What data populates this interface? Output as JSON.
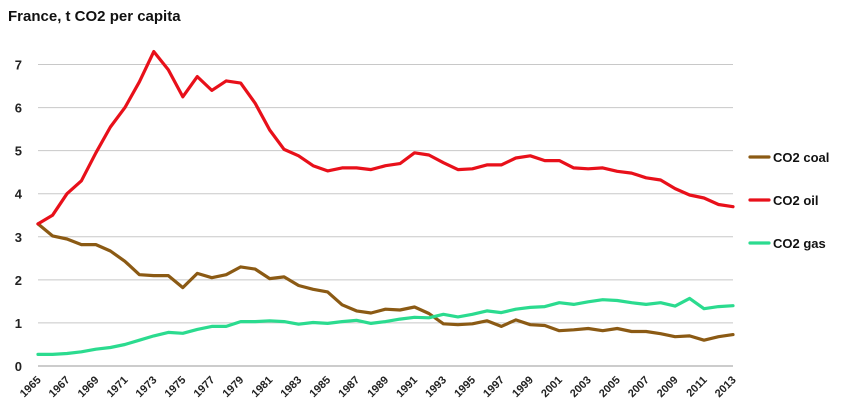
{
  "chart_data": {
    "type": "line",
    "title": "France, t CO2 per capita",
    "xlabel": "",
    "ylabel": "",
    "ylim": [
      0,
      7.5
    ],
    "yticks": [
      0,
      1,
      2,
      3,
      4,
      5,
      6,
      7
    ],
    "x": [
      1965,
      1966,
      1967,
      1968,
      1969,
      1970,
      1971,
      1972,
      1973,
      1974,
      1975,
      1976,
      1977,
      1978,
      1979,
      1980,
      1981,
      1982,
      1983,
      1984,
      1985,
      1986,
      1987,
      1988,
      1989,
      1990,
      1991,
      1992,
      1993,
      1994,
      1995,
      1996,
      1997,
      1998,
      1999,
      2000,
      2001,
      2002,
      2003,
      2004,
      2005,
      2006,
      2007,
      2008,
      2009,
      2010,
      2011,
      2012,
      2013
    ],
    "x_tick_labels": [
      "1965",
      "1967",
      "1969",
      "1971",
      "1973",
      "1975",
      "1977",
      "1979",
      "1981",
      "1983",
      "1985",
      "1987",
      "1989",
      "1991",
      "1993",
      "1995",
      "1997",
      "1999",
      "2001",
      "2003",
      "2005",
      "2007",
      "2009",
      "2011",
      "2013"
    ],
    "grid": "horizontal",
    "legend_position": "right",
    "series": [
      {
        "name": "CO2 coal",
        "color": "#8B5A14",
        "values": [
          3.3,
          3.02,
          2.95,
          2.82,
          2.82,
          2.67,
          2.43,
          2.12,
          2.1,
          2.1,
          1.82,
          2.15,
          2.05,
          2.12,
          2.3,
          2.25,
          2.03,
          2.07,
          1.87,
          1.78,
          1.72,
          1.42,
          1.28,
          1.23,
          1.32,
          1.3,
          1.37,
          1.22,
          0.98,
          0.96,
          0.98,
          1.05,
          0.92,
          1.07,
          0.96,
          0.94,
          0.82,
          0.84,
          0.87,
          0.82,
          0.87,
          0.8,
          0.8,
          0.75,
          0.68,
          0.7,
          0.6,
          0.68,
          0.73
        ]
      },
      {
        "name": "CO2 oil",
        "color": "#E8101A",
        "values": [
          3.3,
          3.5,
          4.0,
          4.3,
          4.95,
          5.55,
          6.0,
          6.6,
          7.3,
          6.88,
          6.25,
          6.72,
          6.4,
          6.62,
          6.57,
          6.1,
          5.48,
          5.03,
          4.88,
          4.65,
          4.53,
          4.6,
          4.6,
          4.56,
          4.65,
          4.7,
          4.95,
          4.9,
          4.72,
          4.56,
          4.58,
          4.67,
          4.67,
          4.83,
          4.88,
          4.77,
          4.77,
          4.6,
          4.58,
          4.6,
          4.52,
          4.48,
          4.37,
          4.32,
          4.12,
          3.97,
          3.9,
          3.75,
          3.7
        ]
      },
      {
        "name": "CO2 gas",
        "color": "#2BDB8F",
        "values": [
          0.27,
          0.27,
          0.29,
          0.33,
          0.39,
          0.43,
          0.5,
          0.6,
          0.7,
          0.78,
          0.76,
          0.85,
          0.92,
          0.92,
          1.03,
          1.03,
          1.05,
          1.03,
          0.97,
          1.01,
          0.99,
          1.03,
          1.06,
          0.99,
          1.03,
          1.09,
          1.13,
          1.12,
          1.2,
          1.14,
          1.2,
          1.28,
          1.24,
          1.32,
          1.36,
          1.38,
          1.47,
          1.43,
          1.49,
          1.54,
          1.52,
          1.47,
          1.43,
          1.47,
          1.39,
          1.57,
          1.33,
          1.38,
          1.4
        ]
      }
    ]
  }
}
